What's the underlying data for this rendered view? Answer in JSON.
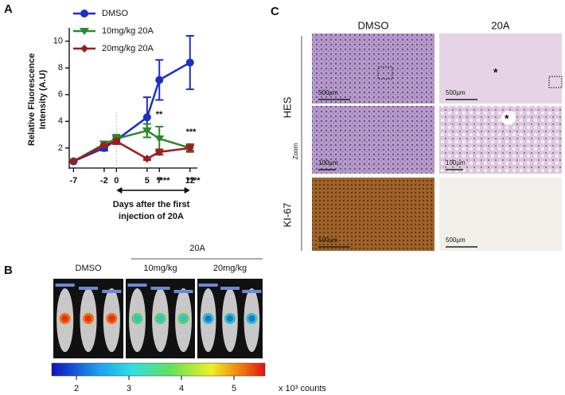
{
  "chart_data": {
    "type": "line",
    "label": "A",
    "y_label": [
      "Relative Fluorescence",
      "Intensity (A.U)"
    ],
    "x_label": [
      "Days after the first",
      "injection of 20A"
    ],
    "x": [
      -7,
      -2,
      0,
      5,
      7,
      12
    ],
    "xlim": [
      -7.7,
      13.2
    ],
    "xticks": [
      -7,
      -2,
      0,
      5,
      7,
      12
    ],
    "ylim": [
      0.5,
      11
    ],
    "yticks": [
      2,
      4,
      6,
      8,
      10
    ],
    "series": [
      {
        "name": "DMSO",
        "color": "#1c2fc4",
        "marker": "circle",
        "values": [
          1,
          2,
          2.6,
          4.3,
          7.1,
          8.4
        ],
        "errors": [
          0,
          0.2,
          0.3,
          1.5,
          1.5,
          2.0
        ]
      },
      {
        "name": "10mg/kg 20A",
        "color": "#2a8a2a",
        "marker": "triangle",
        "values": [
          1,
          2.3,
          2.7,
          3.3,
          2.7,
          2.0
        ],
        "errors": [
          0,
          0.2,
          0.3,
          0.5,
          0.9,
          0.3
        ]
      },
      {
        "name": "20mg/kg 20A",
        "color": "#a01c1c",
        "marker": "diamond",
        "values": [
          1,
          2.2,
          2.5,
          1.2,
          1.7,
          2.0
        ],
        "errors": [
          0,
          0.1,
          0.2,
          0.1,
          0.2,
          0.2
        ]
      }
    ],
    "annotations": [
      "**",
      "***",
      "****",
      "****"
    ]
  },
  "panel_b": {
    "label": "B",
    "group": "20A",
    "columns": [
      "DMSO",
      "10mg/kg",
      "20mg/kg"
    ],
    "colorbar": {
      "lim": [
        1.53,
        5.59
      ],
      "ticks": [
        2,
        3,
        4,
        5
      ],
      "unit": "x 10³ counts"
    }
  },
  "panel_c": {
    "label": "C",
    "columns": [
      "DMSO",
      "20A"
    ],
    "rows": [
      "HES",
      "Zoom",
      "KI-67"
    ],
    "scale_bars": [
      "500µm",
      "500µm",
      "100µm",
      "100µm",
      "500µm",
      "500µm"
    ],
    "marks": [
      "*",
      "*"
    ]
  }
}
